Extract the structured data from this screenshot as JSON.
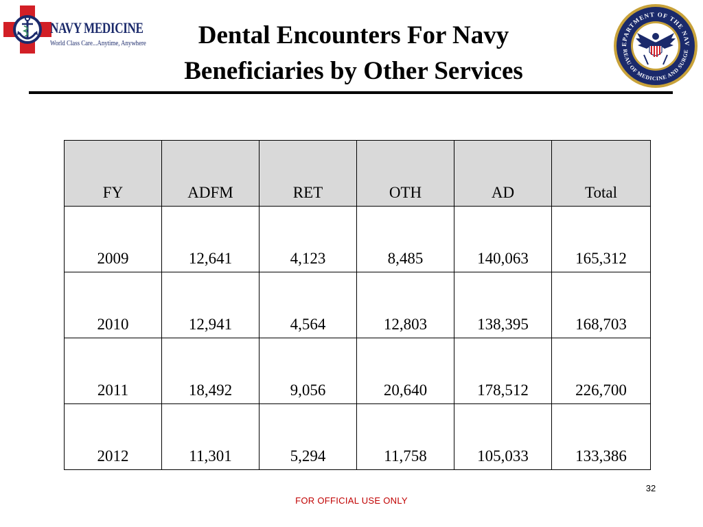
{
  "title": {
    "line1": "Dental Encounters For Navy",
    "line2": "Beneficiaries by Other Services"
  },
  "logo_left": {
    "icon": "navy-medicine-anchor-cross-icon",
    "wordmark": "NAVY MEDICINE",
    "tagline": "World Class Care...Anytime, Anywhere",
    "colors": {
      "cross": "#d21f26",
      "navy": "#1b2a6b"
    }
  },
  "logo_right": {
    "icon": "bureau-of-medicine-seal-icon",
    "ring_text_top": "DEPARTMENT OF THE NAVY",
    "ring_text_bottom": "BUREAU OF MEDICINE AND SURGERY",
    "colors": {
      "ring": "#c8a23a",
      "navy": "#1b2a6b"
    }
  },
  "table": {
    "columns": [
      "FY",
      "ADFM",
      "RET",
      "OTH",
      "AD",
      "Total"
    ],
    "rows": [
      [
        "2009",
        "12,641",
        "4,123",
        "8,485",
        "140,063",
        "165,312"
      ],
      [
        "2010",
        "12,941",
        "4,564",
        "12,803",
        "138,395",
        "168,703"
      ],
      [
        "2011",
        "18,492",
        "9,056",
        "20,640",
        "178,512",
        "226,700"
      ],
      [
        "2012",
        "11,301",
        "5,294",
        "11,758",
        "105,033",
        "133,386"
      ]
    ]
  },
  "footer": {
    "page_number": "32",
    "classification": "FOR OFFICIAL USE ONLY",
    "classification_color": "#c00000"
  }
}
